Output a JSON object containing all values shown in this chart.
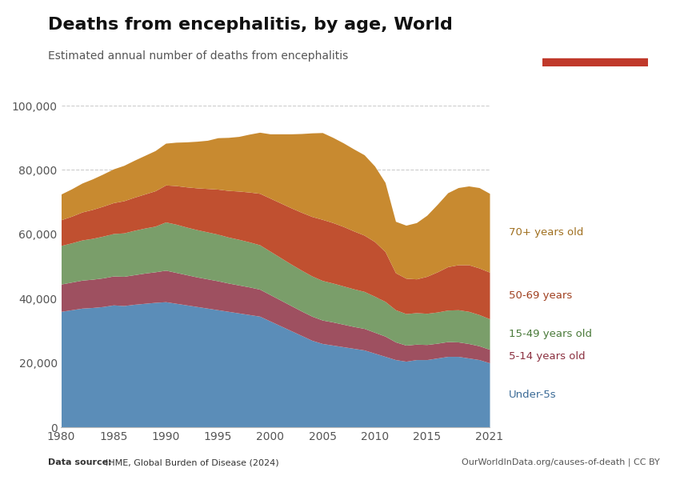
{
  "title": "Deaths from encephalitis, by age, World",
  "subtitle": "Estimated annual number of deaths from encephalitis",
  "source_left_bold": "Data source: ",
  "source_left_normal": "IHME, Global Burden of Disease (2024)",
  "source_right": "OurWorldInData.org/causes-of-death | CC BY",
  "ylim": [
    0,
    100000
  ],
  "yticks": [
    0,
    20000,
    40000,
    60000,
    80000,
    100000
  ],
  "ytick_labels": [
    "0",
    "20,000",
    "40,000",
    "60,000",
    "80,000",
    "100,000"
  ],
  "xticks": [
    1980,
    1985,
    1990,
    1995,
    2000,
    2005,
    2010,
    2015,
    2021
  ],
  "years": [
    1980,
    1981,
    1982,
    1983,
    1984,
    1985,
    1986,
    1987,
    1988,
    1989,
    1990,
    1991,
    1992,
    1993,
    1994,
    1995,
    1996,
    1997,
    1998,
    1999,
    2000,
    2001,
    2002,
    2003,
    2004,
    2005,
    2006,
    2007,
    2008,
    2009,
    2010,
    2011,
    2012,
    2013,
    2014,
    2015,
    2016,
    2017,
    2018,
    2019,
    2020,
    2021
  ],
  "under5": [
    36000,
    36500,
    37000,
    37200,
    37500,
    38000,
    37800,
    38200,
    38500,
    38800,
    39000,
    38500,
    38000,
    37500,
    37000,
    36500,
    36000,
    35500,
    35000,
    34500,
    33000,
    31500,
    30000,
    28500,
    27000,
    26000,
    25500,
    25000,
    24500,
    24000,
    23000,
    22000,
    21000,
    20500,
    21000,
    21000,
    21500,
    22000,
    22000,
    21500,
    21000,
    20000
  ],
  "age5_14": [
    8500,
    8600,
    8700,
    8800,
    8900,
    9000,
    9100,
    9200,
    9400,
    9500,
    9800,
    9600,
    9400,
    9200,
    9100,
    9000,
    8800,
    8700,
    8600,
    8400,
    8200,
    8000,
    7800,
    7600,
    7500,
    7300,
    7200,
    7000,
    6800,
    6700,
    6500,
    6300,
    5500,
    5000,
    4800,
    4700,
    4600,
    4600,
    4500,
    4500,
    4300,
    4200
  ],
  "age15_49": [
    12000,
    12200,
    12500,
    12700,
    13000,
    13200,
    13500,
    13800,
    14000,
    14200,
    15000,
    15000,
    14800,
    14700,
    14600,
    14500,
    14300,
    14200,
    14000,
    13800,
    13500,
    13200,
    12900,
    12700,
    12500,
    12300,
    12100,
    11900,
    11700,
    11500,
    11200,
    10800,
    10000,
    9800,
    9800,
    9700,
    9700,
    9800,
    10000,
    10000,
    9700,
    9500
  ],
  "age50_69": [
    8000,
    8300,
    8700,
    9000,
    9300,
    9600,
    10000,
    10300,
    10600,
    11000,
    11500,
    12000,
    12500,
    13000,
    13500,
    14000,
    14500,
    15000,
    15500,
    16000,
    16500,
    17000,
    17500,
    18000,
    18500,
    19000,
    18800,
    18500,
    18000,
    17500,
    17000,
    15500,
    11500,
    11000,
    10500,
    11500,
    12500,
    13500,
    14000,
    14500,
    14500,
    14500
  ],
  "age70plus": [
    8000,
    8500,
    9000,
    9500,
    10000,
    10500,
    11000,
    11500,
    12000,
    12500,
    13000,
    13500,
    14000,
    14500,
    15000,
    16000,
    16500,
    17000,
    18000,
    19000,
    20000,
    21500,
    23000,
    24500,
    26000,
    27000,
    26500,
    26000,
    25500,
    25000,
    23500,
    21500,
    16000,
    16500,
    17500,
    19000,
    21000,
    23000,
    24000,
    24500,
    25000,
    24500
  ],
  "colors": {
    "under5": "#5b8db8",
    "age5_14": "#9e5060",
    "age15_49": "#7a9e6a",
    "age50_69": "#c05030",
    "age70plus": "#c88a30"
  },
  "label_colors": {
    "under5": "#3a6a96",
    "age5_14": "#8b3040",
    "age15_49": "#4a7a3a",
    "age50_69": "#a04020",
    "age70plus": "#a07020"
  },
  "labels": {
    "under5": "Under-5s",
    "age5_14": "5-14 years old",
    "age15_49": "15-49 years old",
    "age50_69": "50-69 years",
    "age70plus": "70+ years old"
  },
  "background_color": "#ffffff",
  "owid_bg": "#1a3050",
  "owid_red": "#c0392b"
}
